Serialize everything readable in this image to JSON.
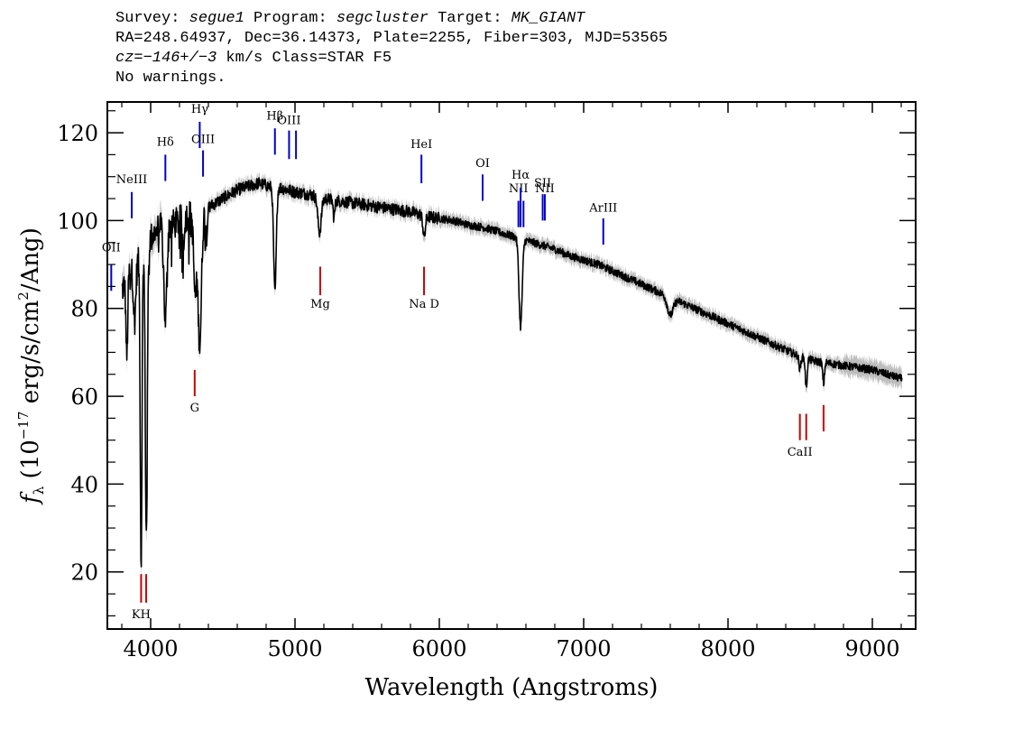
{
  "header": {
    "line1": {
      "survey_label": "Survey: ",
      "survey": "segue1",
      "program_label": " Program: ",
      "program": "segcluster",
      "target_label": " Target: ",
      "target": "MK_GIANT"
    },
    "line2": "RA=248.64937, Dec=36.14373, Plate=2255, Fiber=303, MJD=53565",
    "line3": {
      "cz_label": "cz",
      "cz_eq": "=",
      "cz_value": "−146+/−3",
      "cz_rest": " km/s Class=STAR F5"
    },
    "line4": "No warnings."
  },
  "colors": {
    "spectrum": "#000000",
    "error_band": "#bdbdbd",
    "emission": "#0000cc",
    "absorption": "#cc0000"
  },
  "chart_data": {
    "type": "line",
    "title": "",
    "xlabel": "Wavelength (Angstroms)",
    "ylabel": "fλ (10⁻¹⁷ erg/s/cm²/Ang)",
    "xlim": [
      3700,
      9300
    ],
    "ylim": [
      7,
      127
    ],
    "x_ticks": [
      4000,
      5000,
      6000,
      7000,
      8000,
      9000
    ],
    "x_tick_labels": [
      "4000",
      "5000",
      "6000",
      "7000",
      "8000",
      "9000"
    ],
    "y_ticks": [
      20,
      40,
      60,
      80,
      100,
      120
    ],
    "y_tick_labels": [
      "20",
      "40",
      "60",
      "80",
      "100",
      "120"
    ],
    "grid": false,
    "continuum": {
      "x": [
        3800,
        3850,
        3900,
        3950,
        4000,
        4050,
        4100,
        4150,
        4200,
        4250,
        4300,
        4350,
        4400,
        4450,
        4500,
        4550,
        4600,
        4650,
        4700,
        4750,
        4800,
        4850,
        4900,
        4950,
        5000,
        5100,
        5200,
        5300,
        5400,
        5500,
        5600,
        5700,
        5800,
        5900,
        6000,
        6100,
        6200,
        6300,
        6400,
        6500,
        6600,
        6700,
        6800,
        6900,
        7000,
        7100,
        7200,
        7300,
        7400,
        7500,
        7600,
        7700,
        7800,
        7900,
        8000,
        8100,
        8200,
        8300,
        8400,
        8500,
        8600,
        8700,
        8800,
        8900,
        9000,
        9100,
        9200
      ],
      "y": [
        84,
        88,
        90,
        93,
        96,
        98,
        99,
        99,
        100,
        101,
        101.5,
        102,
        103,
        104,
        105,
        106,
        107,
        107.5,
        108,
        108.5,
        108,
        107.5,
        107.5,
        107,
        106.5,
        106,
        105,
        104.5,
        104,
        103.5,
        103,
        102.5,
        102,
        101,
        100.5,
        100,
        99,
        98.5,
        97.5,
        96.5,
        95.5,
        94.5,
        93.5,
        92,
        91,
        90,
        88.5,
        87,
        85.5,
        84,
        82.5,
        81,
        79.5,
        78,
        76.5,
        75,
        73.5,
        72,
        70.5,
        69,
        68,
        67.5,
        67,
        66.5,
        66,
        65,
        64
      ]
    },
    "absorption_features": [
      {
        "x": 3835,
        "depth": 18,
        "width": 6
      },
      {
        "x": 3889,
        "depth": 12,
        "width": 8
      },
      {
        "x": 3934,
        "depth": 70,
        "width": 6
      },
      {
        "x": 3970,
        "depth": 66,
        "width": 7
      },
      {
        "x": 4102,
        "depth": 22,
        "width": 10
      },
      {
        "x": 4226,
        "depth": 6,
        "width": 5
      },
      {
        "x": 4308,
        "depth": 18,
        "width": 10
      },
      {
        "x": 4340,
        "depth": 30,
        "width": 12
      },
      {
        "x": 4384,
        "depth": 6,
        "width": 6
      },
      {
        "x": 4861,
        "depth": 24,
        "width": 9
      },
      {
        "x": 5170,
        "depth": 8,
        "width": 12
      },
      {
        "x": 5270,
        "depth": 4,
        "width": 6
      },
      {
        "x": 5895,
        "depth": 5,
        "width": 8
      },
      {
        "x": 6563,
        "depth": 20,
        "width": 11
      },
      {
        "x": 7600,
        "depth": 4,
        "width": 20
      },
      {
        "x": 8498,
        "depth": 3,
        "width": 6
      },
      {
        "x": 8542,
        "depth": 7,
        "width": 6
      },
      {
        "x": 8662,
        "depth": 5,
        "width": 6
      }
    ],
    "line_markers": [
      {
        "label": "OII",
        "x": 3727,
        "y_top": 90,
        "y_bot": 84,
        "color": "emission",
        "label_y": 93
      },
      {
        "label": "NeIII",
        "x": 3869,
        "y_top": 106.5,
        "y_bot": 100.5,
        "color": "emission",
        "label_y": 108.5
      },
      {
        "label": "Hδ",
        "x": 4102,
        "y_top": 115,
        "y_bot": 109,
        "color": "emission",
        "label_y": 117
      },
      {
        "label": "Hγ",
        "x": 4340,
        "y_top": 122.5,
        "y_bot": 116.5,
        "color": "emission",
        "label_y": 124.5
      },
      {
        "label": "OIII",
        "x": 4363,
        "y_top": 116,
        "y_bot": 110,
        "color": "emission",
        "label_y": 117.7
      },
      {
        "label": "Hβ",
        "x": 4861,
        "y_top": 121,
        "y_bot": 115,
        "color": "emission",
        "label_y": 123
      },
      {
        "label": "OIII",
        "x": 4959,
        "y_top": 120.5,
        "y_bot": 114,
        "color": "emission",
        "label_y": 122
      },
      {
        "label": "",
        "x": 5007,
        "y_top": 120.5,
        "y_bot": 114,
        "color": "emission",
        "label_y": 0
      },
      {
        "label": "HeI",
        "x": 5876,
        "y_top": 115,
        "y_bot": 108.5,
        "color": "emission",
        "label_y": 116.5
      },
      {
        "label": "OI",
        "x": 6300,
        "y_top": 110.5,
        "y_bot": 104.5,
        "color": "emission",
        "label_y": 112.2
      },
      {
        "label": "NII",
        "x": 6548,
        "y_top": 104.5,
        "y_bot": 98.5,
        "color": "emission",
        "label_y": 106.5
      },
      {
        "label": "Hα",
        "x": 6563,
        "y_top": 107.5,
        "y_bot": 98.5,
        "color": "emission",
        "label_y": 109.5
      },
      {
        "label": "",
        "x": 6583,
        "y_top": 104.5,
        "y_bot": 98.5,
        "color": "emission",
        "label_y": 0
      },
      {
        "label": "SII",
        "x": 6716,
        "y_top": 106,
        "y_bot": 100,
        "color": "emission",
        "label_y": 107.7
      },
      {
        "label": "NII",
        "x": 6731,
        "y_top": 106,
        "y_bot": 100,
        "color": "emission",
        "label_y": 106.5
      },
      {
        "label": "ArIII",
        "x": 7136,
        "y_top": 100.5,
        "y_bot": 94.5,
        "color": "emission",
        "label_y": 102
      },
      {
        "label": "KH",
        "x": 3934,
        "y_top": 19.5,
        "y_bot": 13,
        "color": "absorption",
        "label_y": 9.5
      },
      {
        "label": "",
        "x": 3969,
        "y_top": 19.5,
        "y_bot": 13,
        "color": "absorption",
        "label_y": 0
      },
      {
        "label": "G",
        "x": 4305,
        "y_top": 66,
        "y_bot": 60,
        "color": "absorption",
        "label_y": 56.5
      },
      {
        "label": "Mg",
        "x": 5175,
        "y_top": 89.5,
        "y_bot": 83,
        "color": "absorption",
        "label_y": 80.2
      },
      {
        "label": "Na D",
        "x": 5894,
        "y_top": 89.5,
        "y_bot": 83,
        "color": "absorption",
        "label_y": 80.2
      },
      {
        "label": "CaII",
        "x": 8498,
        "y_top": 56,
        "y_bot": 50,
        "color": "absorption",
        "label_y": 46.5
      },
      {
        "label": "",
        "x": 8542,
        "y_top": 56,
        "y_bot": 50,
        "color": "absorption",
        "label_y": 0
      },
      {
        "label": "",
        "x": 8662,
        "y_top": 58,
        "y_bot": 52,
        "color": "absorption",
        "label_y": 0
      }
    ]
  }
}
